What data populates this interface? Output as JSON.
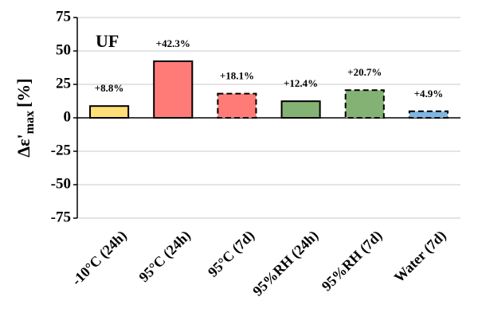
{
  "chart_data": {
    "type": "bar",
    "annotation": "UF",
    "y_label": {
      "main": "Δε'",
      "sub": "max",
      "unit": "[%]"
    },
    "categories": [
      "-10°C (24h)",
      "95°C (24h)",
      "95°C (7d)",
      "95%RH (24h)",
      "95%RH (7d)",
      "Water (7d)"
    ],
    "values": [
      8.8,
      42.3,
      18.1,
      12.4,
      20.7,
      4.9
    ],
    "value_labels": [
      "+8.8%",
      "+42.3%",
      "+18.1%",
      "+12.4%",
      "+20.7%",
      "+4.9%"
    ],
    "colors": [
      "#ffdd77",
      "#ff7b78",
      "#ff7b78",
      "#84b274",
      "#84b274",
      "#7fb6e2"
    ],
    "dashed": [
      false,
      false,
      true,
      false,
      true,
      true
    ],
    "ylim": [
      -75,
      75
    ],
    "yticks": [
      -75,
      -50,
      -25,
      0,
      25,
      50,
      75
    ],
    "grid": true
  }
}
